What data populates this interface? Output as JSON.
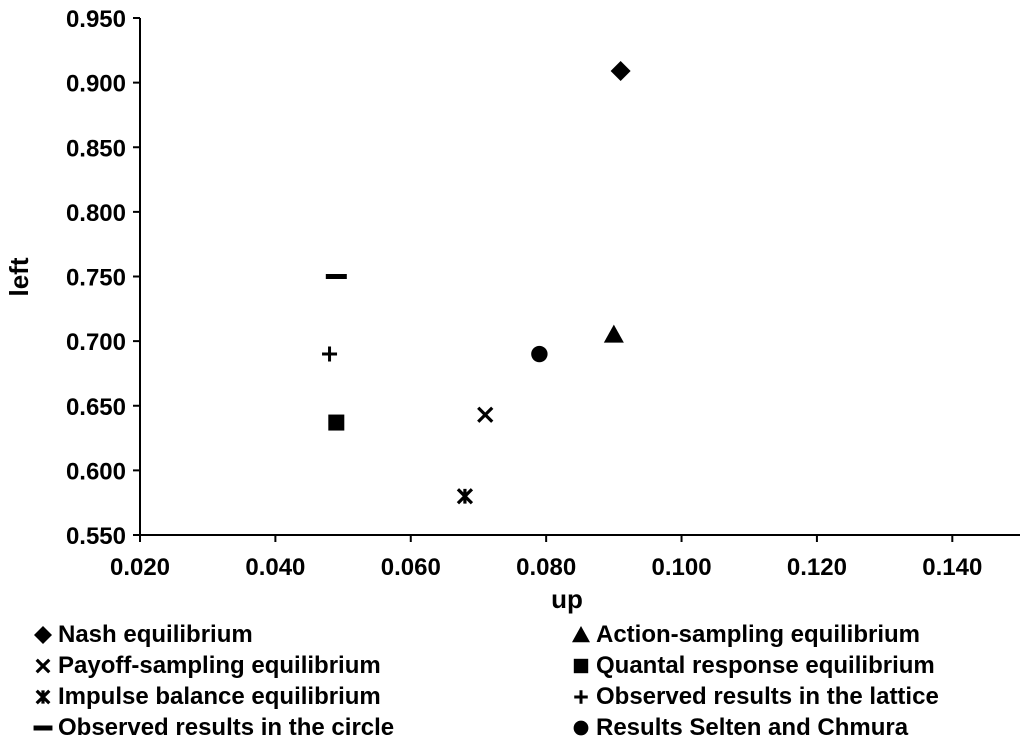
{
  "chart_data": {
    "type": "scatter",
    "title": "",
    "xlabel": "up",
    "ylabel": "left",
    "xlim": [
      0.02,
      0.15
    ],
    "ylim": [
      0.55,
      0.95
    ],
    "x_ticks": [
      "0.020",
      "0.040",
      "0.060",
      "0.080",
      "0.100",
      "0.120",
      "0.140"
    ],
    "y_ticks": [
      "0.550",
      "0.600",
      "0.650",
      "0.700",
      "0.750",
      "0.800",
      "0.850",
      "0.900",
      "0.950"
    ],
    "grid": false,
    "legend_position": "bottom",
    "series": [
      {
        "name": "Nash equilibrium",
        "marker": "diamond",
        "x": 0.091,
        "y": 0.909
      },
      {
        "name": "Action-sampling equilibrium",
        "marker": "triangle",
        "x": 0.09,
        "y": 0.705
      },
      {
        "name": "Payoff-sampling equilibrium",
        "marker": "x",
        "x": 0.071,
        "y": 0.643
      },
      {
        "name": "Quantal response equilibrium",
        "marker": "square",
        "x": 0.049,
        "y": 0.637
      },
      {
        "name": "Impulse balance equilibrium",
        "marker": "star",
        "x": 0.068,
        "y": 0.58
      },
      {
        "name": "Observed results in the lattice",
        "marker": "plus",
        "x": 0.048,
        "y": 0.69
      },
      {
        "name": "Observed results in the circle",
        "marker": "dash",
        "x": 0.049,
        "y": 0.75
      },
      {
        "name": "Results Selten and Chmura",
        "marker": "circle",
        "x": 0.079,
        "y": 0.69
      }
    ]
  }
}
